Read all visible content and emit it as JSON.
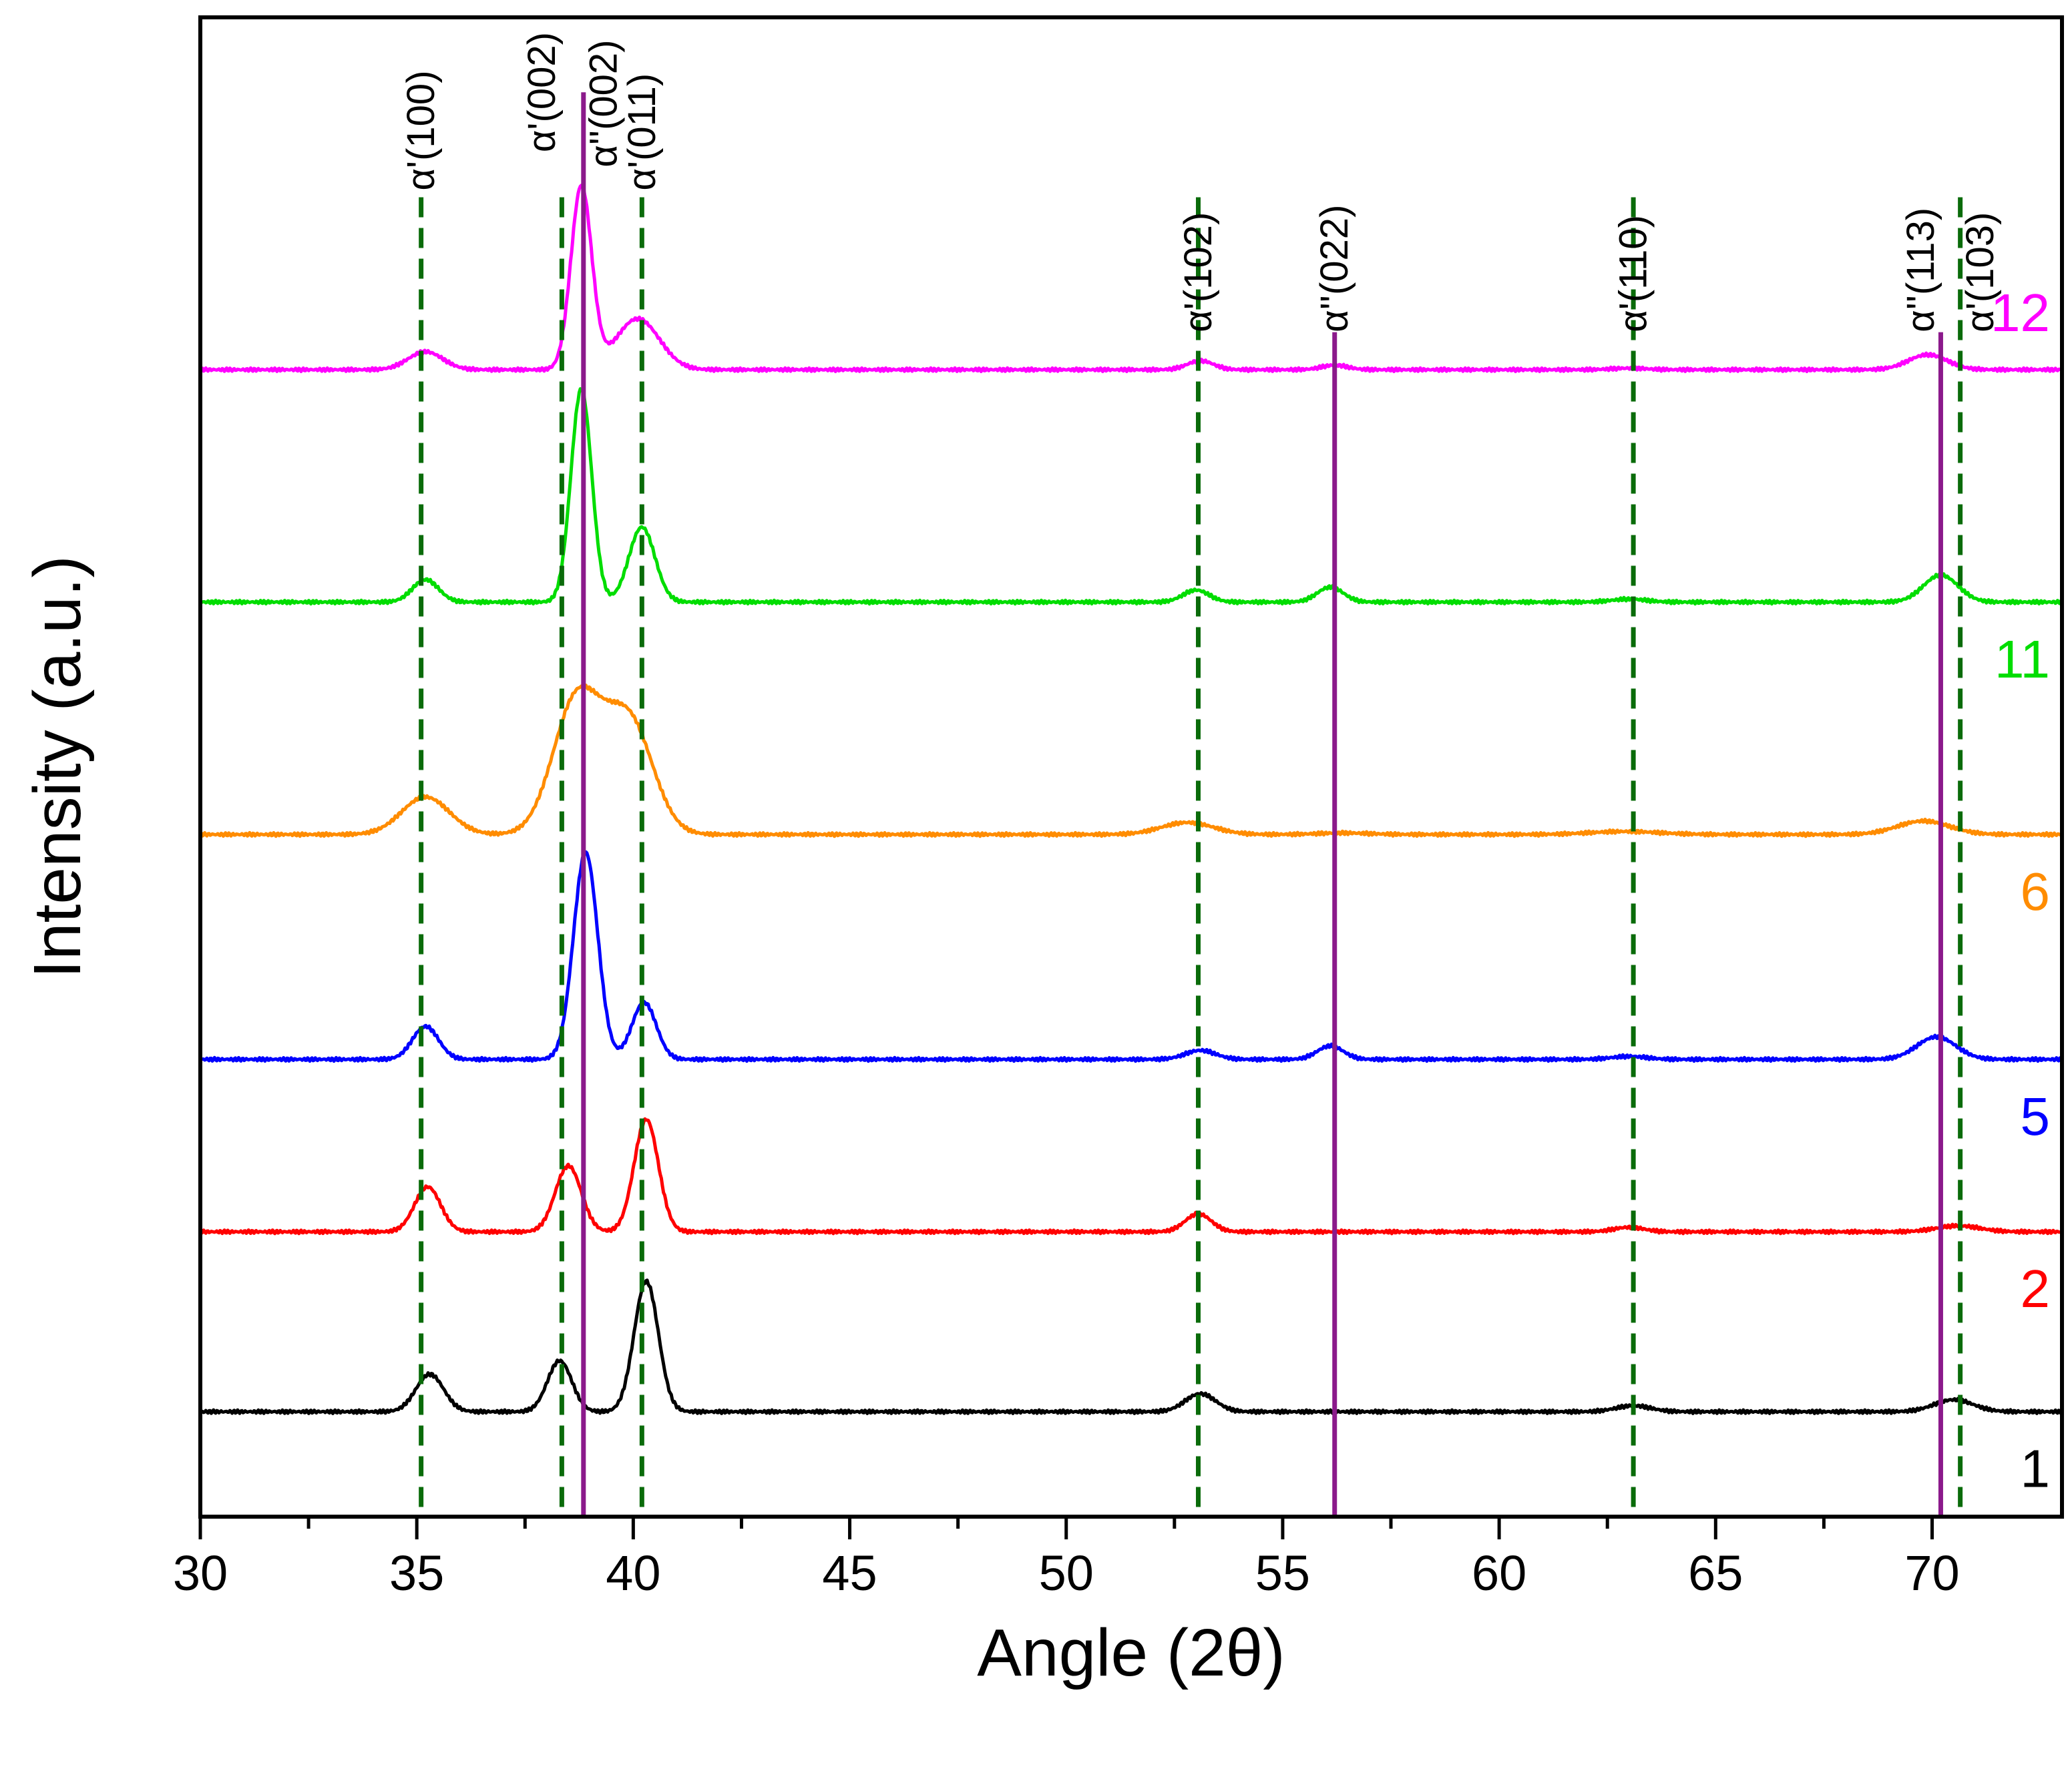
{
  "chart_data": {
    "type": "line",
    "title": "",
    "xlabel": "Angle (2θ)",
    "ylabel": "Intensity (a.u.)",
    "xlim": [
      30,
      73
    ],
    "ylim": [
      0,
      10
    ],
    "yticks_shown": false,
    "x_ticks": [
      30,
      35,
      40,
      45,
      50,
      55,
      60,
      65,
      70
    ],
    "x_tick_labels": [
      "30",
      "35",
      "40",
      "45",
      "50",
      "55",
      "60",
      "65",
      "70"
    ],
    "series": [
      {
        "name": "1",
        "color": "#000000",
        "baseline": 0.7,
        "peaks": [
          [
            35.3,
            0.25,
            0.32
          ],
          [
            38.3,
            0.34,
            0.28
          ],
          [
            40.3,
            0.87,
            0.28
          ],
          [
            53.1,
            0.12,
            0.35
          ],
          [
            63.1,
            0.04,
            0.4
          ],
          [
            70.5,
            0.08,
            0.45
          ]
        ]
      },
      {
        "name": "2",
        "color": "#ff0000",
        "baseline": 1.9,
        "peaks": [
          [
            35.25,
            0.3,
            0.3
          ],
          [
            38.5,
            0.44,
            0.3
          ],
          [
            40.3,
            0.75,
            0.28
          ],
          [
            53.05,
            0.12,
            0.3
          ],
          [
            63.0,
            0.03,
            0.35
          ],
          [
            70.6,
            0.04,
            0.5
          ]
        ]
      },
      {
        "name": "5",
        "color": "#0000ff",
        "baseline": 3.05,
        "peaks": [
          [
            35.2,
            0.22,
            0.3
          ],
          [
            38.9,
            1.38,
            0.28
          ],
          [
            40.25,
            0.38,
            0.28
          ],
          [
            53.1,
            0.06,
            0.35
          ],
          [
            56.1,
            0.09,
            0.3
          ],
          [
            63.0,
            0.02,
            0.4
          ],
          [
            70.1,
            0.15,
            0.45
          ]
        ]
      },
      {
        "name": "6",
        "color": "#ff8c00",
        "baseline": 4.55,
        "peaks": [
          [
            35.2,
            0.25,
            0.55
          ],
          [
            38.7,
            0.9,
            0.55
          ],
          [
            39.9,
            0.75,
            0.55
          ],
          [
            52.8,
            0.08,
            0.6
          ],
          [
            56.4,
            0.01,
            0.6
          ],
          [
            62.9,
            0.02,
            0.8
          ],
          [
            69.8,
            0.09,
            0.6
          ]
        ]
      },
      {
        "name": "11",
        "color": "#00dd00",
        "baseline": 6.1,
        "peaks": [
          [
            35.2,
            0.15,
            0.3
          ],
          [
            38.8,
            1.42,
            0.24
          ],
          [
            40.2,
            0.5,
            0.3
          ],
          [
            53.0,
            0.08,
            0.3
          ],
          [
            56.1,
            0.1,
            0.3
          ],
          [
            63.0,
            0.02,
            0.4
          ],
          [
            70.2,
            0.18,
            0.4
          ]
        ]
      },
      {
        "name": "12",
        "color": "#ff00ff",
        "baseline": 7.65,
        "peaks": [
          [
            35.2,
            0.12,
            0.4
          ],
          [
            38.8,
            1.22,
            0.24
          ],
          [
            40.1,
            0.34,
            0.5
          ],
          [
            53.1,
            0.06,
            0.3
          ],
          [
            56.2,
            0.03,
            0.3
          ],
          [
            63.0,
            0.01,
            0.4
          ],
          [
            69.9,
            0.1,
            0.45
          ]
        ]
      }
    ],
    "reference_lines": [
      {
        "x": 35.1,
        "label": "α'(100)",
        "style": "dashed",
        "color": "#0a6b0a"
      },
      {
        "x": 38.35,
        "label": "α'(002)",
        "style": "dashed",
        "color": "#0a6b0a"
      },
      {
        "x": 38.85,
        "label": "α''(002)",
        "style": "solid",
        "color": "#8b1a8b"
      },
      {
        "x": 40.2,
        "label": "α'(011)",
        "style": "dashed",
        "color": "#0a6b0a"
      },
      {
        "x": 53.05,
        "label": "α'(102)",
        "style": "dashed",
        "color": "#0a6b0a"
      },
      {
        "x": 56.2,
        "label": "α''(022)",
        "style": "solid",
        "color": "#8b1a8b"
      },
      {
        "x": 63.1,
        "label": "α'(110)",
        "style": "dashed",
        "color": "#0a6b0a"
      },
      {
        "x": 70.2,
        "label": "α''(113)",
        "style": "solid",
        "color": "#8b1a8b"
      },
      {
        "x": 70.65,
        "label": "α'(103)",
        "style": "dashed",
        "color": "#0a6b0a"
      }
    ]
  }
}
